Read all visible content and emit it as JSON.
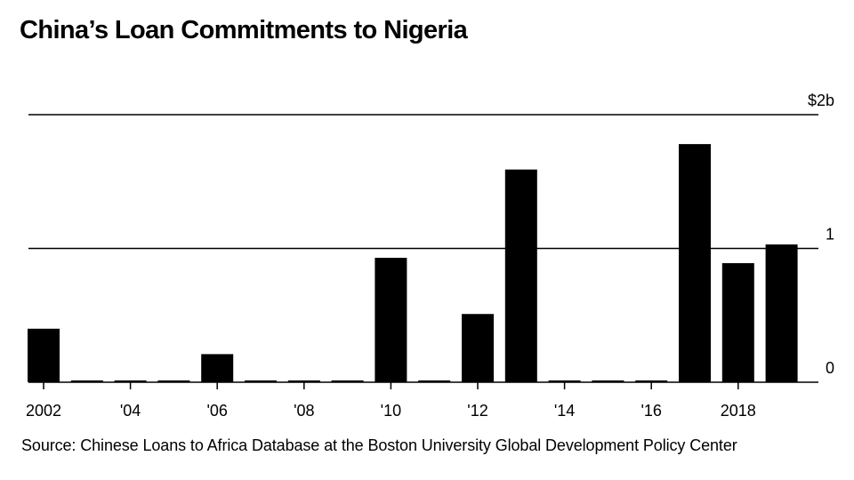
{
  "chart_data": {
    "type": "bar",
    "title": "China’s Loan Commitments to Nigeria",
    "source": "Source: Chinese Loans to Africa Database at the Boston University Global Development Policy Center",
    "x": [
      2002,
      2003,
      2004,
      2005,
      2006,
      2007,
      2008,
      2009,
      2010,
      2011,
      2012,
      2013,
      2014,
      2015,
      2016,
      2017,
      2018,
      2019
    ],
    "values": [
      0.4,
      0,
      0,
      0,
      0.21,
      0,
      0,
      0,
      0.93,
      0,
      0.51,
      1.59,
      0,
      0,
      0,
      1.78,
      0.89,
      1.03
    ],
    "x_tick_labels": [
      {
        "x": 2002,
        "label": "2002"
      },
      {
        "x": 2004,
        "label": "'04"
      },
      {
        "x": 2006,
        "label": "'06"
      },
      {
        "x": 2008,
        "label": "'08"
      },
      {
        "x": 2010,
        "label": "'10"
      },
      {
        "x": 2012,
        "label": "'12"
      },
      {
        "x": 2014,
        "label": "'14"
      },
      {
        "x": 2016,
        "label": "'16"
      },
      {
        "x": 2018,
        "label": "2018"
      }
    ],
    "y_ticks": [
      {
        "value": 0,
        "label": "0"
      },
      {
        "value": 1,
        "label": "1"
      },
      {
        "value": 2,
        "label": "$2b"
      }
    ],
    "ylim": [
      0,
      2
    ],
    "unit": "$b",
    "grid": true,
    "bar_color": "#000000"
  }
}
